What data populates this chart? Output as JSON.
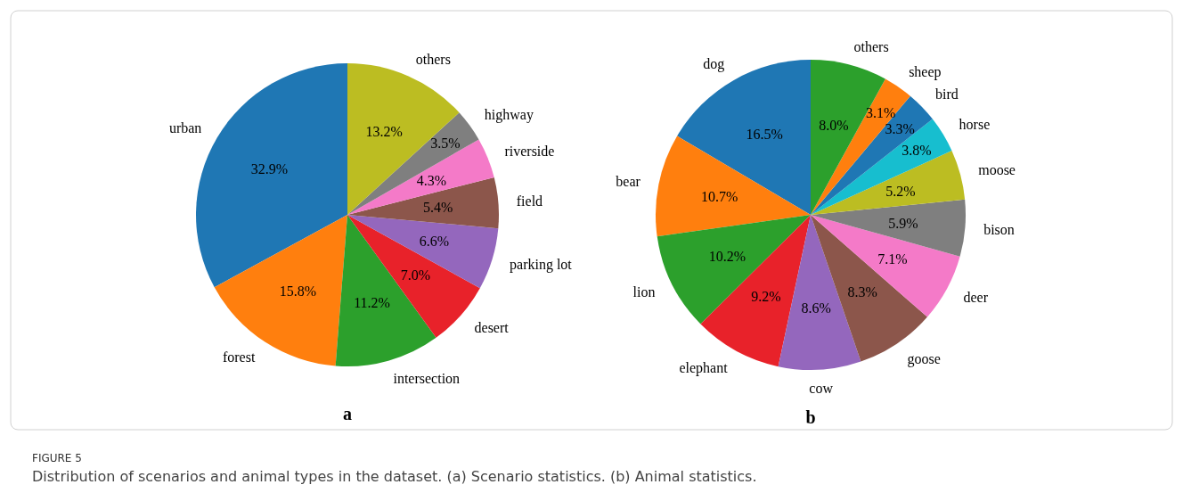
{
  "chart_data": [
    {
      "type": "pie",
      "title": "a",
      "categories": [
        "urban",
        "forest",
        "intersection",
        "desert",
        "parking lot",
        "field",
        "riverside",
        "highway",
        "others"
      ],
      "values": [
        32.9,
        15.8,
        11.2,
        7.0,
        6.6,
        5.4,
        4.3,
        3.5,
        13.2
      ],
      "value_labels": [
        "32.9%",
        "15.8%",
        "11.2%",
        "7.0%",
        "6.6%",
        "5.4%",
        "4.3%",
        "3.5%",
        "13.2%"
      ],
      "colors": [
        "#1f77b4",
        "#ff7f0e",
        "#2ca02c",
        "#e8222a",
        "#9467bd",
        "#8c564b",
        "#f47ac8",
        "#7f7f7f",
        "#bcbd22"
      ],
      "annotations": [
        "FIGURE 5",
        "Distribution of scenarios and animal types in the dataset. (a) Scenario statistics. (b) Animal statistics."
      ]
    },
    {
      "type": "pie",
      "title": "b",
      "categories": [
        "dog",
        "bear",
        "lion",
        "elephant",
        "cow",
        "goose",
        "deer",
        "bison",
        "moose",
        "horse",
        "bird",
        "sheep",
        "others"
      ],
      "values": [
        16.5,
        10.7,
        10.2,
        9.2,
        8.6,
        8.3,
        7.1,
        5.9,
        5.2,
        3.8,
        3.3,
        3.1,
        8.0
      ],
      "value_labels": [
        "16.5%",
        "10.7%",
        "10.2%",
        "9.2%",
        "8.6%",
        "8.3%",
        "7.1%",
        "5.9%",
        "5.2%",
        "3.8%",
        "3.3%",
        "3.1%",
        "8.0%"
      ],
      "colors": [
        "#1f77b4",
        "#ff7f0e",
        "#2ca02c",
        "#e8222a",
        "#9467bd",
        "#8c564b",
        "#f47ac8",
        "#7f7f7f",
        "#bcbd22",
        "#17becf",
        "#1f77b4",
        "#ff7f0e",
        "#2ca02c"
      ]
    }
  ]
}
